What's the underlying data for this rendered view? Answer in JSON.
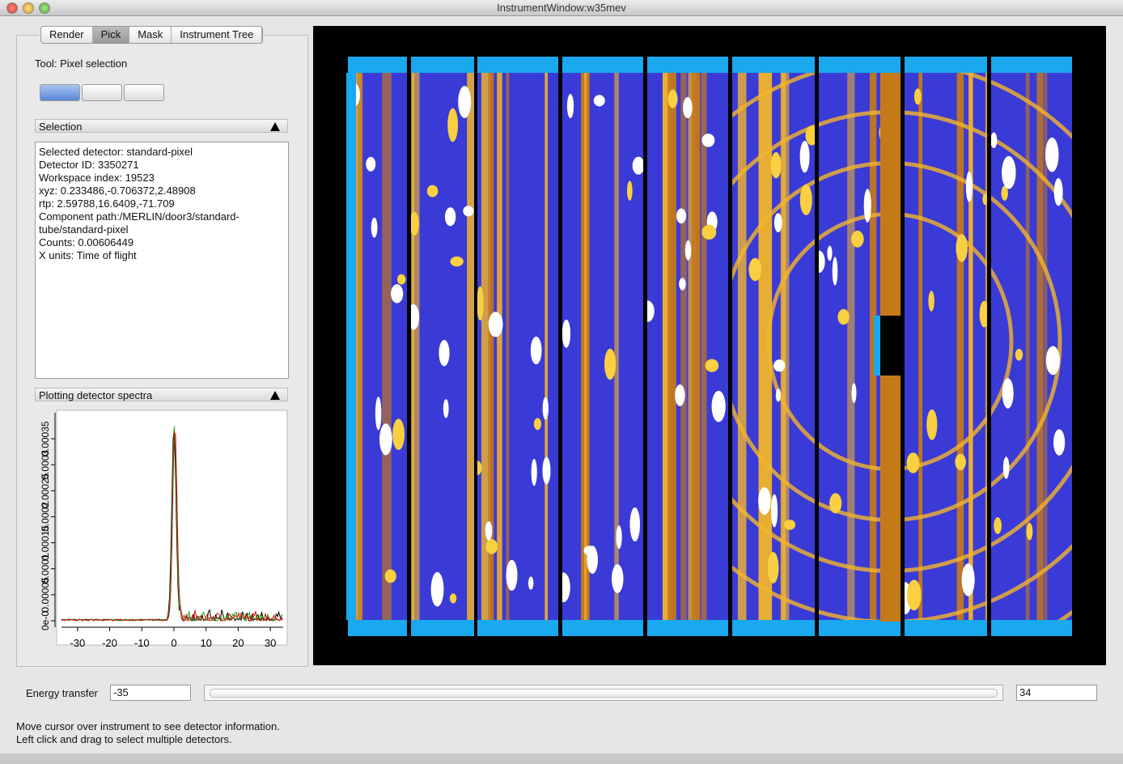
{
  "window": {
    "title": "InstrumentWindow:w35mev"
  },
  "tabs": [
    "Render",
    "Pick",
    "Mask",
    "Instrument Tree"
  ],
  "tool_label": "Tool: Pixel selection",
  "selection": {
    "header": "Selection",
    "lines": [
      "Selected detector: standard-pixel",
      "Detector ID: 3350271",
      "Workspace index: 19523",
      "xyz: 0.233486,-0.706372,2.48908",
      "rtp: 2.59788,16.6409,-71.709",
      "Component path:/MERLIN/door3/standard-",
      "tube/standard-pixel",
      "Counts: 0.00606449",
      "X units: Time of flight"
    ]
  },
  "plot_panel": {
    "header": "Plotting detector spectra",
    "chart_data": {
      "type": "line",
      "xlim": [
        -35,
        34
      ],
      "xticks": [
        -30,
        -20,
        -10,
        0,
        10,
        20,
        30
      ],
      "ylim": [
        0,
        0.0004
      ],
      "yticks": [
        {
          "value": 0,
          "label": "0e-0"
        },
        5e-05,
        0.0001,
        0.00015,
        0.0002,
        0.00025,
        0.0003,
        0.00035
      ]
    }
  },
  "energy": {
    "label": "Energy transfer",
    "min": "-35",
    "max": "34"
  },
  "status": [
    "Move cursor over instrument to see detector information.",
    "Left click and drag to select multiple detectors."
  ]
}
